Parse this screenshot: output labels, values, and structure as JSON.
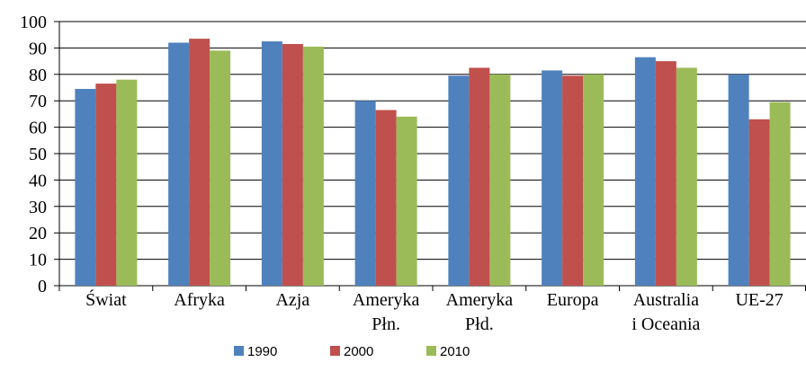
{
  "chart_data": {
    "type": "bar",
    "categories": [
      "Świat",
      "Afryka",
      "Azja",
      "Ameryka\nPłn.",
      "Ameryka\nPłd.",
      "Europa",
      "Australia\ni Oceania",
      "UE-27"
    ],
    "series": [
      {
        "name": "1990",
        "color": "#4f81bd",
        "values": [
          74.5,
          92,
          92.5,
          70,
          79.5,
          81.5,
          86.5,
          80
        ]
      },
      {
        "name": "2000",
        "color": "#c0504d",
        "values": [
          76.5,
          93.5,
          91.5,
          66.5,
          82.5,
          79.5,
          85,
          63
        ]
      },
      {
        "name": "2010",
        "color": "#9bbb59",
        "values": [
          78,
          89,
          90.5,
          64,
          80,
          80,
          82.5,
          69.5
        ]
      }
    ],
    "ylim": [
      0,
      100
    ],
    "yticks": [
      0,
      10,
      20,
      30,
      40,
      50,
      60,
      70,
      80,
      90,
      100
    ],
    "grid": true,
    "legend": "bottom"
  }
}
